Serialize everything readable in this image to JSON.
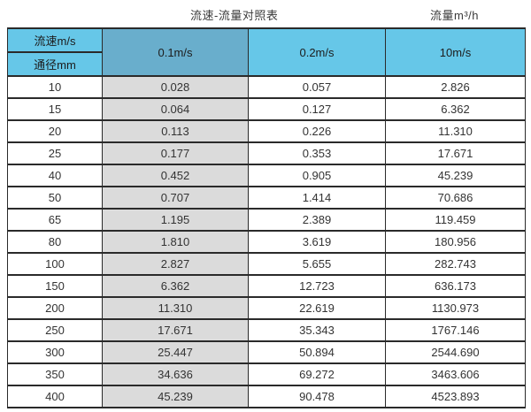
{
  "page": {
    "title": "流速-流量对照表",
    "unit_label": "流量m³/h"
  },
  "table": {
    "header": {
      "corner_top": "流速m/s",
      "corner_bottom": "通径mm",
      "columns": [
        "0.1m/s",
        "0.2m/s",
        "10m/s"
      ]
    },
    "rows": [
      [
        "10",
        "0.028",
        "0.057",
        "2.826"
      ],
      [
        "15",
        "0.064",
        "0.127",
        "6.362"
      ],
      [
        "20",
        "0.113",
        "0.226",
        "11.310"
      ],
      [
        "25",
        "0.177",
        "0.353",
        "17.671"
      ],
      [
        "40",
        "0.452",
        "0.905",
        "45.239"
      ],
      [
        "50",
        "0.707",
        "1.414",
        "70.686"
      ],
      [
        "65",
        "1.195",
        "2.389",
        "119.459"
      ],
      [
        "80",
        "1.810",
        "3.619",
        "180.956"
      ],
      [
        "100",
        "2.827",
        "5.655",
        "282.743"
      ],
      [
        "150",
        "6.362",
        "12.723",
        "636.173"
      ],
      [
        "200",
        "11.310",
        "22.619",
        "1130.973"
      ],
      [
        "250",
        "17.671",
        "35.343",
        "1767.146"
      ],
      [
        "300",
        "25.447",
        "50.894",
        "2544.690"
      ],
      [
        "350",
        "34.636",
        "69.272",
        "3463.606"
      ],
      [
        "400",
        "45.239",
        "90.478",
        "4523.893"
      ]
    ]
  },
  "colors": {
    "header_blue": "#66C7E8",
    "header_dark_blue": "#69AECC",
    "gray_column": "#DBDBDB",
    "border": "#2a2a2a"
  },
  "chart_data": {
    "type": "table",
    "title": "流速-流量对照表",
    "ylabel": "流量m³/h",
    "row_axis_label": "通径mm",
    "column_axis_label": "流速m/s",
    "categories": [
      10,
      15,
      20,
      25,
      40,
      50,
      65,
      80,
      100,
      150,
      200,
      250,
      300,
      350,
      400
    ],
    "series": [
      {
        "name": "0.1m/s",
        "values": [
          0.028,
          0.064,
          0.113,
          0.177,
          0.452,
          0.707,
          1.195,
          1.81,
          2.827,
          6.362,
          11.31,
          17.671,
          25.447,
          34.636,
          45.239
        ]
      },
      {
        "name": "0.2m/s",
        "values": [
          0.057,
          0.127,
          0.226,
          0.353,
          0.905,
          1.414,
          2.389,
          3.619,
          5.655,
          12.723,
          22.619,
          35.343,
          50.894,
          69.272,
          90.478
        ]
      },
      {
        "name": "10m/s",
        "values": [
          2.826,
          6.362,
          11.31,
          17.671,
          45.239,
          70.686,
          119.459,
          180.956,
          282.743,
          636.173,
          1130.973,
          1767.146,
          2544.69,
          3463.606,
          4523.893
        ]
      }
    ]
  }
}
